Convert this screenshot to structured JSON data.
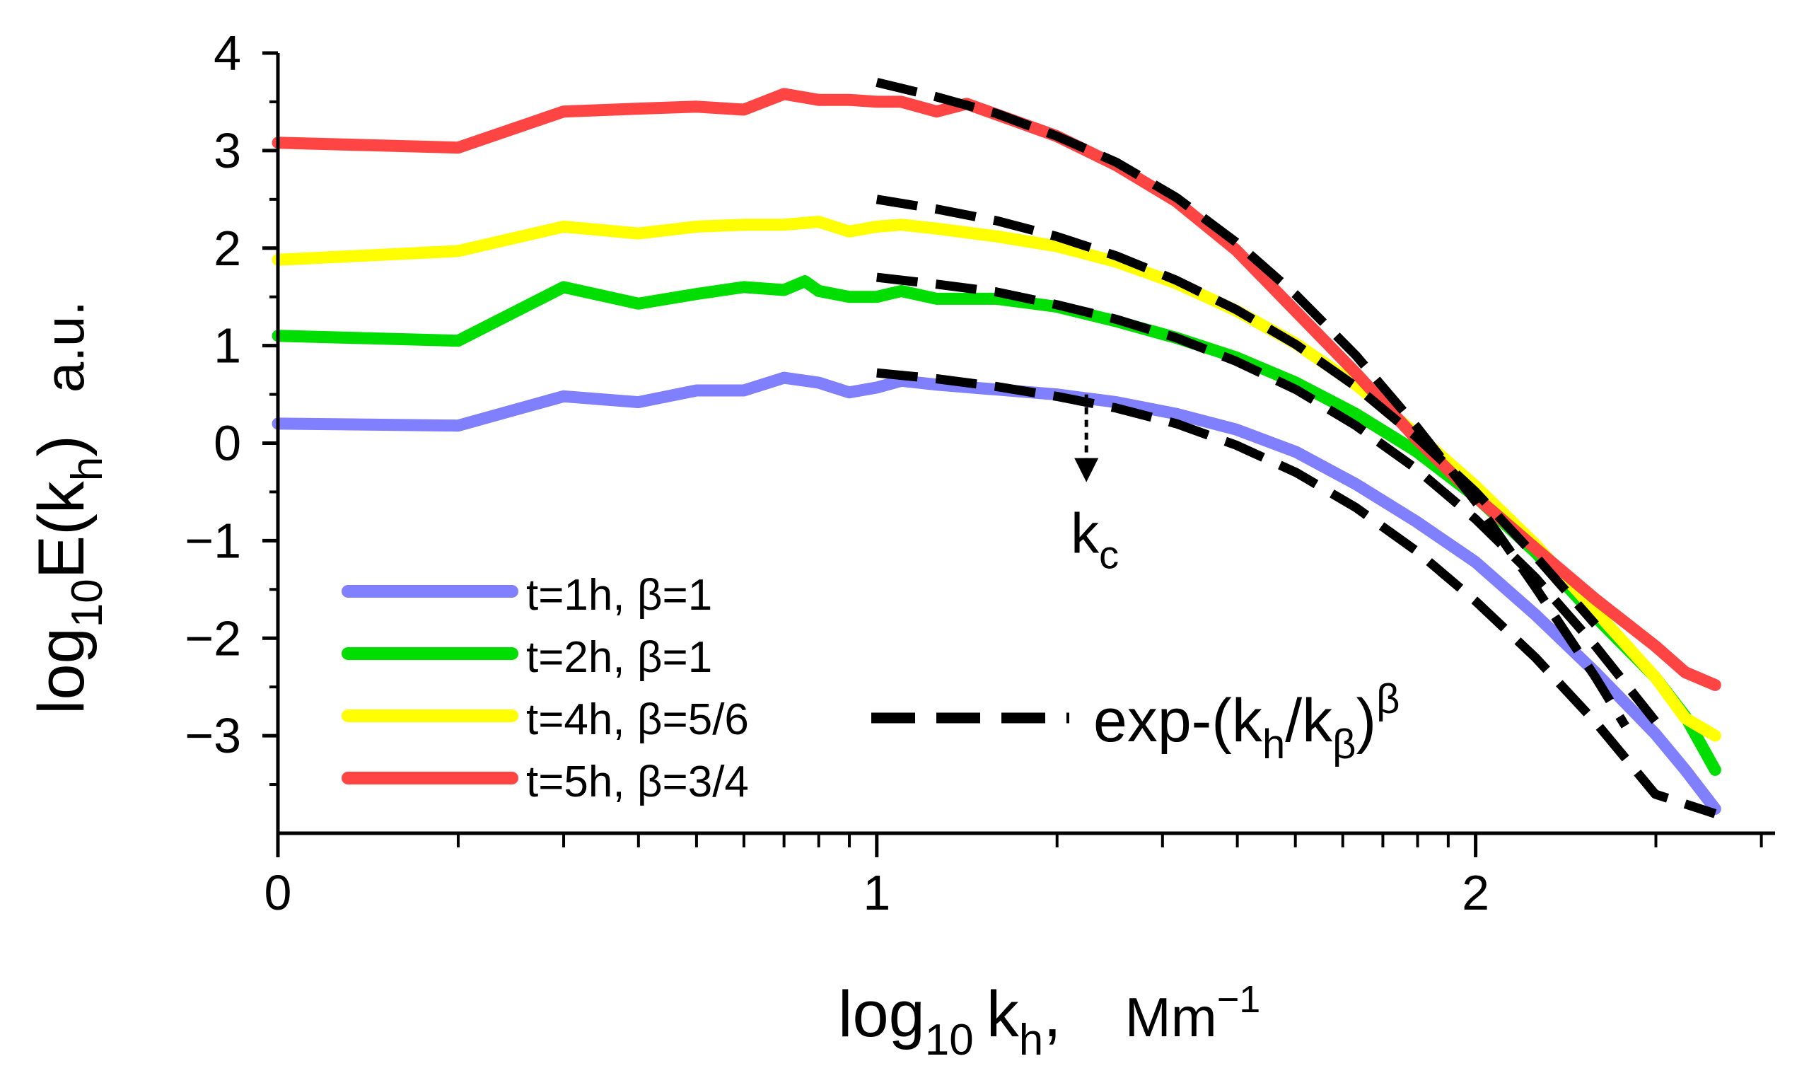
{
  "chart_data": {
    "type": "line",
    "title": "",
    "xlabel": {
      "prefix": "log",
      "sub": "10",
      "var": "k",
      "var_sub": "h",
      "suffix": ",",
      "unit": "Mm",
      "unit_sup": "−1"
    },
    "ylabel": {
      "prefix": "log",
      "sub": "10",
      "func": "E(k",
      "var_sub": "h",
      "close": ")",
      "unit": "a.u."
    },
    "xlim": [
      0,
      2.5
    ],
    "ylim": [
      -4,
      4
    ],
    "x_major_ticks": [
      0,
      1,
      2
    ],
    "x_tick_labels": [
      "0",
      "1",
      "2"
    ],
    "x_log_minor_ticks": true,
    "y_ticks": [
      4,
      3,
      2,
      1,
      0,
      -1,
      -2,
      -3
    ],
    "y_tick_labels": [
      "4",
      "3",
      "2",
      "1",
      "0",
      "−1",
      "−2",
      "−3"
    ],
    "grid": false,
    "series": [
      {
        "name": "t=1h, β=1",
        "color": "#8080ff",
        "style": "solid",
        "x": [
          0,
          0.301,
          0.477,
          0.602,
          0.699,
          0.778,
          0.845,
          0.903,
          0.954,
          1.0,
          1.041,
          1.1,
          1.2,
          1.3,
          1.4,
          1.5,
          1.6,
          1.7,
          1.8,
          1.9,
          2.0,
          2.1,
          2.2,
          2.3,
          2.35,
          2.4
        ],
        "y": [
          0.2,
          0.18,
          0.48,
          0.42,
          0.54,
          0.54,
          0.67,
          0.62,
          0.52,
          0.57,
          0.64,
          0.6,
          0.55,
          0.5,
          0.42,
          0.3,
          0.14,
          -0.09,
          -0.42,
          -0.8,
          -1.22,
          -1.76,
          -2.35,
          -2.98,
          -3.35,
          -3.75
        ]
      },
      {
        "name": "t=2h, β=1",
        "color": "#00dd00",
        "style": "solid",
        "x": [
          0,
          0.301,
          0.477,
          0.602,
          0.699,
          0.778,
          0.845,
          0.88,
          0.903,
          0.954,
          1.0,
          1.041,
          1.1,
          1.2,
          1.3,
          1.4,
          1.5,
          1.6,
          1.7,
          1.8,
          1.9,
          2.0,
          2.1,
          2.2,
          2.3,
          2.35,
          2.4
        ],
        "y": [
          1.1,
          1.05,
          1.6,
          1.43,
          1.53,
          1.6,
          1.57,
          1.66,
          1.56,
          1.5,
          1.5,
          1.56,
          1.48,
          1.48,
          1.4,
          1.25,
          1.08,
          0.88,
          0.62,
          0.3,
          -0.08,
          -0.55,
          -1.12,
          -1.78,
          -2.4,
          -2.8,
          -3.35
        ]
      },
      {
        "name": "t=4h, β=5/6",
        "color": "#ffff00",
        "style": "solid",
        "x": [
          0,
          0.301,
          0.477,
          0.602,
          0.699,
          0.778,
          0.845,
          0.903,
          0.954,
          1.0,
          1.041,
          1.1,
          1.2,
          1.3,
          1.4,
          1.5,
          1.6,
          1.7,
          1.8,
          1.9,
          2.0,
          2.1,
          2.2,
          2.3,
          2.35,
          2.4
        ],
        "y": [
          1.88,
          1.97,
          2.22,
          2.15,
          2.22,
          2.24,
          2.24,
          2.27,
          2.17,
          2.22,
          2.24,
          2.2,
          2.12,
          2.02,
          1.86,
          1.64,
          1.36,
          1.02,
          0.6,
          0.1,
          -0.44,
          -1.04,
          -1.72,
          -2.4,
          -2.82,
          -3.0
        ]
      },
      {
        "name": "t=5h, β=3/4",
        "color": "#ff4444",
        "style": "solid",
        "x": [
          0,
          0.301,
          0.477,
          0.602,
          0.699,
          0.778,
          0.845,
          0.903,
          0.954,
          1.0,
          1.041,
          1.1,
          1.15,
          1.2,
          1.3,
          1.4,
          1.5,
          1.6,
          1.7,
          1.8,
          1.9,
          2.0,
          2.1,
          2.2,
          2.3,
          2.35,
          2.4
        ],
        "y": [
          3.08,
          3.03,
          3.4,
          3.43,
          3.45,
          3.42,
          3.58,
          3.52,
          3.52,
          3.5,
          3.5,
          3.4,
          3.48,
          3.37,
          3.15,
          2.85,
          2.48,
          1.98,
          1.35,
          0.72,
          0.05,
          -0.55,
          -1.08,
          -1.6,
          -2.08,
          -2.35,
          -2.48
        ]
      },
      {
        "name": "exp-(kh/kβ)^β fit t=1h",
        "color": "#000000",
        "style": "dashed",
        "x": [
          1.0,
          1.1,
          1.2,
          1.3,
          1.4,
          1.5,
          1.6,
          1.7,
          1.8,
          1.9,
          2.0,
          2.1,
          2.2,
          2.3,
          2.4
        ],
        "y": [
          0.72,
          0.66,
          0.58,
          0.48,
          0.36,
          0.2,
          -0.02,
          -0.3,
          -0.66,
          -1.1,
          -1.62,
          -2.2,
          -2.86,
          -3.6,
          -3.8
        ]
      },
      {
        "name": "exp-(kh/kβ)^β fit t=2h",
        "color": "#000000",
        "style": "dashed",
        "x": [
          1.0,
          1.1,
          1.2,
          1.3,
          1.4,
          1.5,
          1.6,
          1.7,
          1.8,
          1.9,
          2.0,
          2.1,
          2.2,
          2.3
        ],
        "y": [
          1.7,
          1.63,
          1.55,
          1.42,
          1.27,
          1.08,
          0.84,
          0.55,
          0.18,
          -0.26,
          -0.78,
          -1.38,
          -2.08,
          -2.85
        ]
      },
      {
        "name": "exp-(kh/kβ)^β fit t=4h",
        "color": "#000000",
        "style": "dashed",
        "x": [
          1.0,
          1.1,
          1.2,
          1.3,
          1.4,
          1.5,
          1.6,
          1.7,
          1.8,
          1.9,
          2.0,
          2.1,
          2.2
        ],
        "y": [
          2.5,
          2.4,
          2.28,
          2.12,
          1.92,
          1.67,
          1.37,
          1.01,
          0.58,
          0.07,
          -0.5,
          -1.16,
          -1.86
        ]
      },
      {
        "name": "exp-(kh/kβ)^β fit t=5h",
        "color": "#000000",
        "style": "dashed",
        "x": [
          1.0,
          1.1,
          1.2,
          1.3,
          1.4,
          1.5,
          1.6,
          1.7,
          1.8,
          1.9,
          2.0,
          2.1,
          2.2,
          2.25
        ],
        "y": [
          3.7,
          3.55,
          3.38,
          3.15,
          2.88,
          2.52,
          2.06,
          1.52,
          0.9,
          0.18,
          -0.6,
          -1.48,
          -2.4,
          -2.9
        ]
      }
    ],
    "legend": {
      "placement": "bottom-left",
      "entries": [
        {
          "color": "#8080ff",
          "label": "t=1h, β=1"
        },
        {
          "color": "#00dd00",
          "label": "t=2h, β=1"
        },
        {
          "color": "#ffff00",
          "label": "t=4h, β=5/6"
        },
        {
          "color": "#ff4444",
          "label": "t=5h, β=3/4"
        }
      ]
    },
    "fit_legend": {
      "style": "dashed",
      "color": "#000000",
      "base": "exp-(k",
      "sub1": "h",
      "slash": "/k",
      "sub2": "β",
      "close": ")",
      "sup": "β"
    },
    "annotations": [
      {
        "text": "k",
        "sub": "c",
        "arrow_x": 1.35,
        "arrow_from_y": 0.5,
        "arrow_to_y": -0.4
      }
    ]
  }
}
